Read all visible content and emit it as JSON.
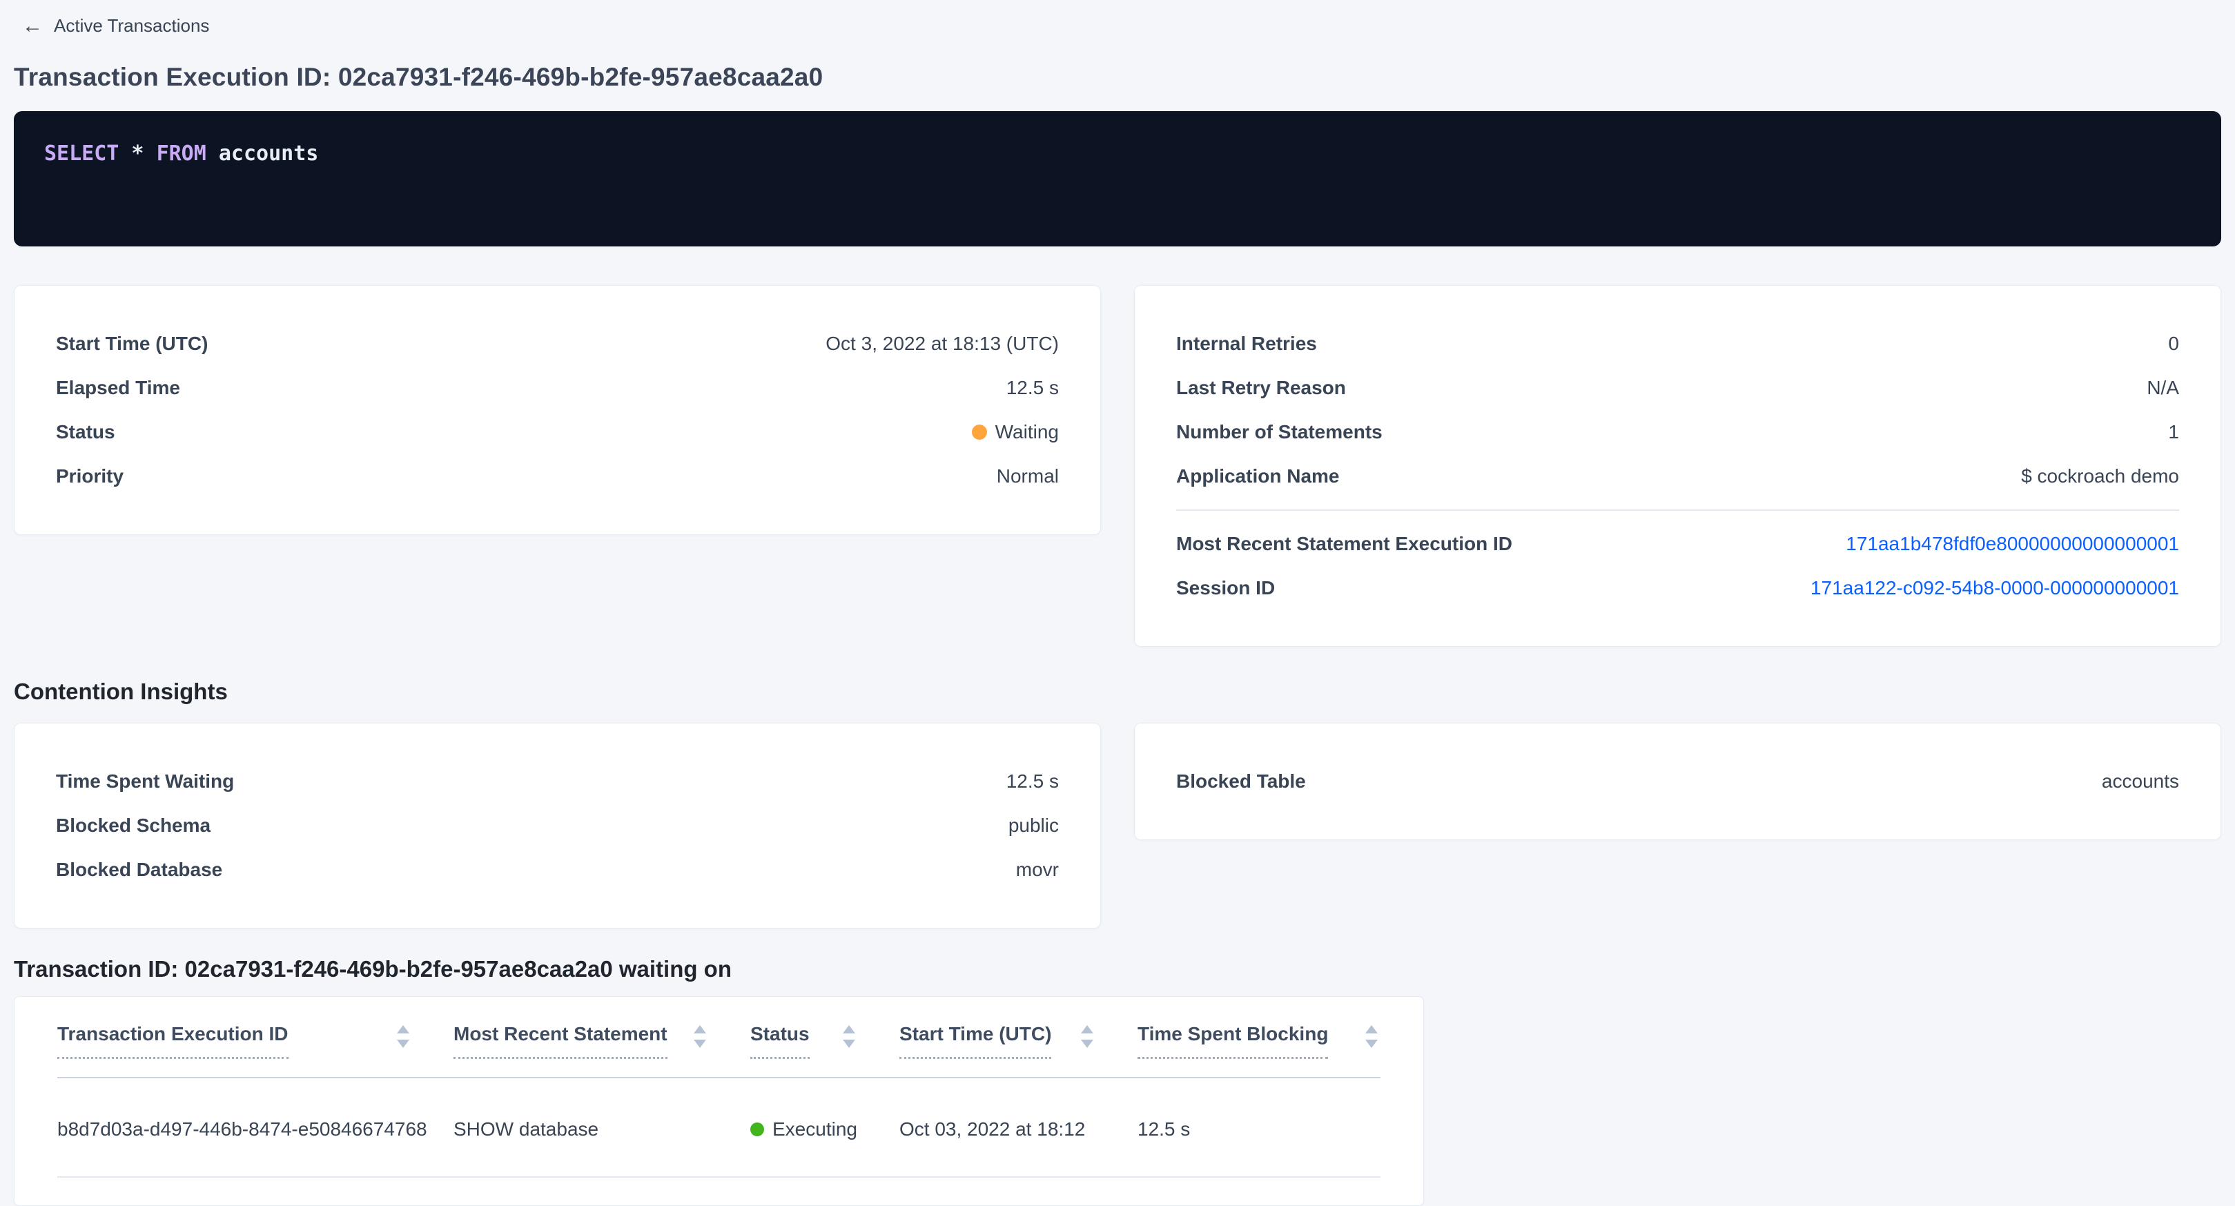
{
  "page": {
    "back_label": "Active Transactions",
    "title": "Transaction Execution ID: 02ca7931-f246-469b-b2fe-957ae8caa2a0"
  },
  "icons": {
    "back_arrow": "←"
  },
  "sql": {
    "keyword_select": "SELECT",
    "star_token": " * ",
    "keyword_from": "FROM",
    "table_token": " accounts"
  },
  "summary_left": {
    "rows": [
      {
        "label": "Start Time (UTC)",
        "value": "Oct 3, 2022 at 18:13 (UTC)"
      },
      {
        "label": "Elapsed Time",
        "value": "12.5 s"
      },
      {
        "label": "Status",
        "value": "Waiting"
      },
      {
        "label": "Priority",
        "value": "Normal"
      }
    ]
  },
  "summary_right": {
    "rows": [
      {
        "label": "Internal Retries",
        "value": "0"
      },
      {
        "label": "Last Retry Reason",
        "value": "N/A"
      },
      {
        "label": "Number of Statements",
        "value": "1"
      },
      {
        "label": "Application Name",
        "value": "$ cockroach demo"
      }
    ],
    "links": [
      {
        "label": "Most Recent Statement Execution ID",
        "value": "171aa1b478fdf0e80000000000000001"
      },
      {
        "label": "Session ID",
        "value": "171aa122-c092-54b8-0000-000000000001"
      }
    ]
  },
  "contention": {
    "heading": "Contention Insights",
    "left_rows": [
      {
        "label": "Time Spent Waiting",
        "value": "12.5 s"
      },
      {
        "label": "Blocked Schema",
        "value": "public"
      },
      {
        "label": "Blocked Database",
        "value": "movr"
      }
    ],
    "right_rows": [
      {
        "label": "Blocked Table",
        "value": "accounts"
      }
    ]
  },
  "waiting_on": {
    "heading": "Transaction ID: 02ca7931-f246-469b-b2fe-957ae8caa2a0 waiting on",
    "columns": [
      "Transaction Execution ID",
      "Most Recent Statement",
      "Status",
      "Start Time (UTC)",
      "Time Spent Blocking"
    ],
    "rows": [
      {
        "id": "b8d7d03a-d497-446b-8474-e50846674768",
        "statement": "SHOW database",
        "status": "Executing",
        "start_time": "Oct 03, 2022 at 18:12",
        "time_blocking": "12.5 s"
      }
    ]
  },
  "colors": {
    "page_background": "#f4f6fa",
    "code_background": "#0c1322",
    "code_keyword": "#c9aaf5",
    "link_blue": "#0b5fff",
    "status_waiting_dot": "#ffa53b",
    "status_executing_dot": "#43b51c"
  }
}
